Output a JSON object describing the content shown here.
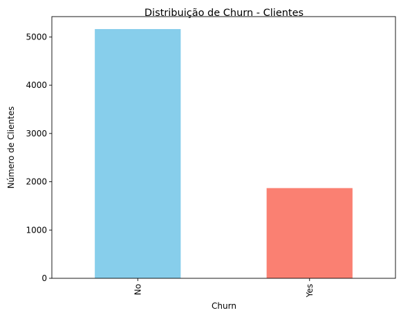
{
  "chart_data": {
    "type": "bar",
    "title": "Distribuição de Churn - Clientes",
    "xlabel": "Churn",
    "ylabel": "Número de Clientes",
    "categories": [
      "No",
      "Yes"
    ],
    "values": [
      5163,
      1869
    ],
    "bar_colors": [
      "#87CEEB",
      "#FA8072"
    ],
    "ylim": [
      0,
      5421
    ],
    "yticks": [
      0,
      1000,
      2000,
      3000,
      4000,
      5000
    ],
    "ytick_labels": [
      "0",
      "1000",
      "2000",
      "3000",
      "4000",
      "5000"
    ],
    "grid": false,
    "legend": "none"
  }
}
